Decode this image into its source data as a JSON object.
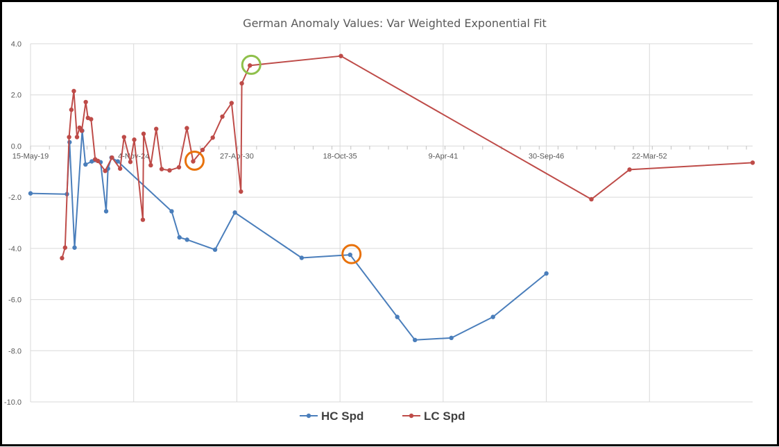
{
  "chart_data": {
    "type": "line",
    "title": "German Anomaly Values: Var Weighted Exponential Fit",
    "xlabel": "",
    "ylabel": "",
    "ylim": [
      -10,
      4
    ],
    "yticks": [
      "4.0",
      "2.0",
      "0.0",
      "-2.0",
      "-4.0",
      "-6.0",
      "-8.0",
      "-10.0"
    ],
    "yticks_values": [
      4,
      2,
      0,
      -2,
      -4,
      -6,
      -8,
      -10
    ],
    "xticks": [
      "15-May-19",
      "4-Nov-24",
      "27-Apr-30",
      "18-Oct-35",
      "9-Apr-41",
      "30-Sep-46",
      "22-Mar-52"
    ],
    "xticks_values": [
      "2019-05-15",
      "2024-11-04",
      "2030-04-27",
      "2035-10-18",
      "2041-04-09",
      "2046-09-30",
      "2052-03-22"
    ],
    "xlim": [
      "2019-05-15",
      "2057-09-12"
    ],
    "grid": true,
    "legend_position": "bottom",
    "series": [
      {
        "name": "HC Spd",
        "color": "#4a7ebb",
        "points": [
          [
            "2019-05-15",
            -1.85
          ],
          [
            "2021-04-20",
            -1.88
          ],
          [
            "2021-06-10",
            0.15
          ],
          [
            "2021-09-15",
            -3.97
          ],
          [
            "2022-02-10",
            0.6
          ],
          [
            "2022-04-15",
            -0.72
          ],
          [
            "2022-08-15",
            -0.6
          ],
          [
            "2022-10-10",
            -0.55
          ],
          [
            "2023-02-01",
            -0.63
          ],
          [
            "2023-05-20",
            -2.55
          ],
          [
            "2023-06-25",
            -0.88
          ],
          [
            "2023-09-01",
            -0.45
          ],
          [
            "2024-01-01",
            -0.6
          ],
          [
            "2026-11-10",
            -2.55
          ],
          [
            "2027-04-10",
            -3.57
          ],
          [
            "2027-09-05",
            -3.66
          ],
          [
            "2029-03-01",
            -4.05
          ],
          [
            "2030-03-20",
            -2.6
          ],
          [
            "2033-10-05",
            -4.37
          ],
          [
            "2036-05-01",
            -4.25
          ],
          [
            "2038-11-01",
            -6.68
          ],
          [
            "2039-10-10",
            -7.58
          ],
          [
            "2041-09-15",
            -7.5
          ],
          [
            "2043-12-01",
            -6.68
          ],
          [
            "2046-10-01",
            -4.98
          ]
        ]
      },
      {
        "name": "LC Spd",
        "color": "#be4b48",
        "points": [
          [
            "2021-01-15",
            -4.38
          ],
          [
            "2021-03-15",
            -3.97
          ],
          [
            "2021-06-01",
            0.35
          ],
          [
            "2021-07-15",
            1.42
          ],
          [
            "2021-09-01",
            2.15
          ],
          [
            "2021-11-01",
            0.35
          ],
          [
            "2021-12-20",
            0.72
          ],
          [
            "2022-02-01",
            0.6
          ],
          [
            "2022-04-20",
            1.72
          ],
          [
            "2022-06-01",
            1.1
          ],
          [
            "2022-08-01",
            1.05
          ],
          [
            "2022-10-20",
            -0.52
          ],
          [
            "2022-12-10",
            -0.58
          ],
          [
            "2023-05-01",
            -0.97
          ],
          [
            "2023-09-10",
            -0.45
          ],
          [
            "2024-02-15",
            -0.88
          ],
          [
            "2024-05-01",
            0.35
          ],
          [
            "2024-09-01",
            -0.62
          ],
          [
            "2024-11-15",
            0.25
          ],
          [
            "2025-05-01",
            -2.88
          ],
          [
            "2025-05-15",
            0.48
          ],
          [
            "2025-10-01",
            -0.75
          ],
          [
            "2026-01-15",
            0.67
          ],
          [
            "2026-05-01",
            -0.9
          ],
          [
            "2026-10-01",
            -0.95
          ],
          [
            "2027-04-01",
            -0.83
          ],
          [
            "2027-09-01",
            0.7
          ],
          [
            "2028-01-01",
            -0.6
          ],
          [
            "2028-07-01",
            -0.15
          ],
          [
            "2029-01-15",
            0.33
          ],
          [
            "2029-07-20",
            1.15
          ],
          [
            "2030-01-15",
            1.68
          ],
          [
            "2030-07-15",
            -1.78
          ],
          [
            "2030-08-01",
            2.45
          ],
          [
            "2031-01-05",
            3.15
          ],
          [
            "2035-11-05",
            3.52
          ],
          [
            "2049-02-20",
            -2.08
          ],
          [
            "2051-03-01",
            -0.92
          ],
          [
            "2057-09-12",
            -0.65
          ]
        ]
      }
    ]
  }
}
